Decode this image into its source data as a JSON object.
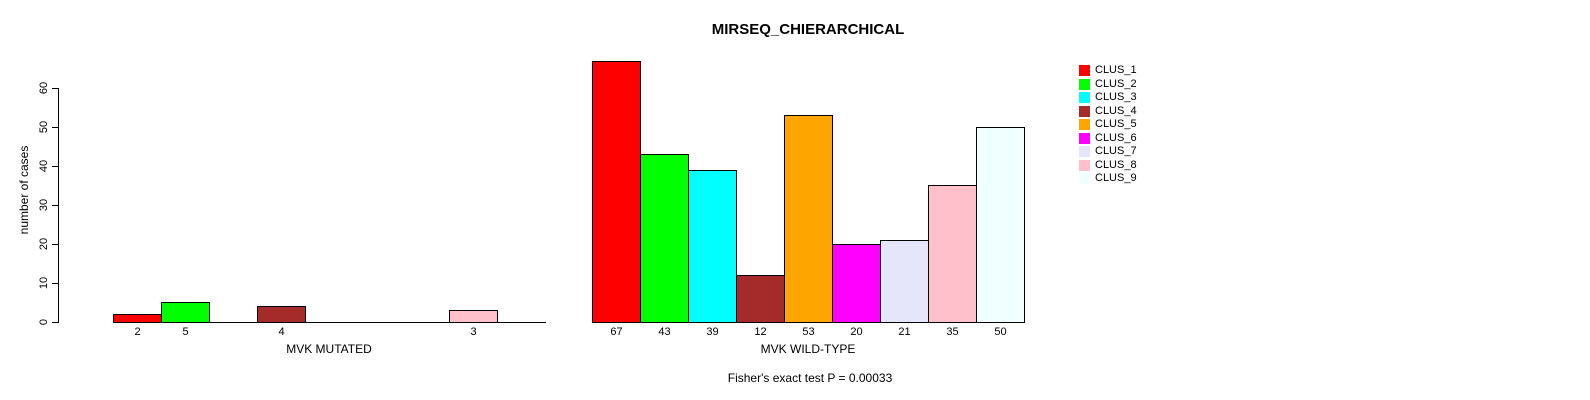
{
  "title": "MIRSEQ_CHIERARCHICAL",
  "y_axis": {
    "label": "number of cases"
  },
  "footer": {
    "text": "Fisher's exact test P = 0.00033"
  },
  "chart_data": {
    "type": "bar",
    "title": "MIRSEQ_CHIERARCHICAL",
    "ylabel": "number of cases",
    "ylim": [
      0,
      60
    ],
    "yticks": [
      0,
      10,
      20,
      30,
      40,
      50,
      60
    ],
    "grid": false,
    "legend_position": "right",
    "clusters": [
      {
        "name": "CLUS_1",
        "color": "#FF0000"
      },
      {
        "name": "CLUS_2",
        "color": "#00FF00"
      },
      {
        "name": "CLUS_3",
        "color": "#00FFFF"
      },
      {
        "name": "CLUS_4",
        "color": "#A52A2A"
      },
      {
        "name": "CLUS_5",
        "color": "#FFA500"
      },
      {
        "name": "CLUS_6",
        "color": "#FF00FF"
      },
      {
        "name": "CLUS_7",
        "color": "#E6E6FA"
      },
      {
        "name": "CLUS_8",
        "color": "#FFC0CB"
      },
      {
        "name": "CLUS_9",
        "color": "#F0FFFF"
      }
    ],
    "panels": [
      {
        "xlabel": "MVK MUTATED",
        "values": [
          2,
          5,
          0,
          4,
          0,
          0,
          0,
          3,
          0
        ]
      },
      {
        "xlabel": "MVK WILD-TYPE",
        "values": [
          67,
          43,
          39,
          12,
          53,
          20,
          21,
          35,
          50
        ]
      }
    ],
    "annotation": "Fisher's exact test P = 0.00033"
  }
}
